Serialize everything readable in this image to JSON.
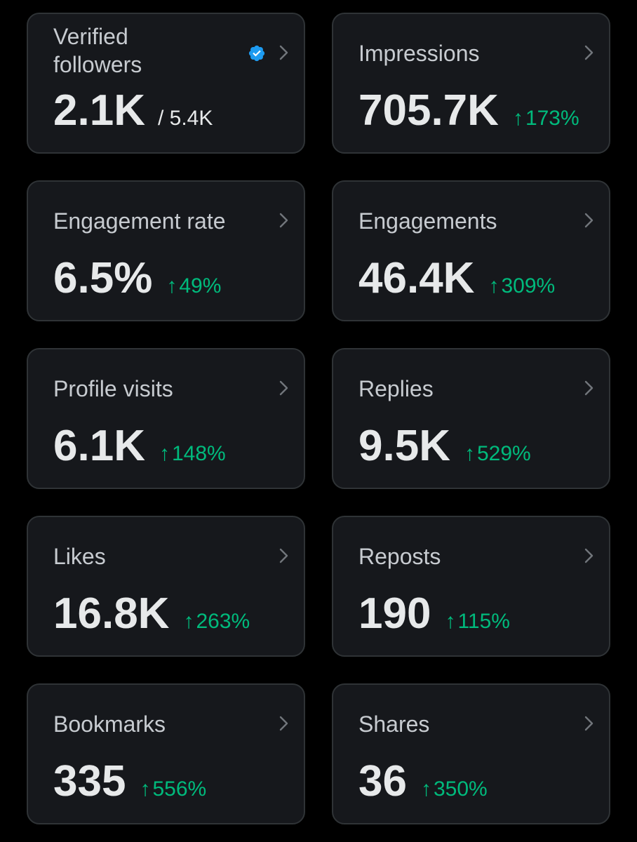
{
  "colors": {
    "background": "#000000",
    "card_bg": "#16181c",
    "card_border": "#2f3336",
    "title": "#c7cbd0",
    "value": "#e7e9ea",
    "positive": "#00ba7c",
    "verified": "#1d9bf0"
  },
  "icons": {
    "chevron": "chevron-right-icon",
    "verified": "verified-badge-icon",
    "arrow": "arrow-up-icon"
  },
  "cards": [
    {
      "title": "Verified followers",
      "value": "2.1K",
      "total": "/ 5.4K"
    },
    {
      "title": "Impressions",
      "value": "705.7K",
      "arrow": "↑",
      "change": "173%"
    },
    {
      "title": "Engagement rate",
      "value": "6.5%",
      "arrow": "↑",
      "change": "49%"
    },
    {
      "title": "Engagements",
      "value": "46.4K",
      "arrow": "↑",
      "change": "309%"
    },
    {
      "title": "Profile visits",
      "value": "6.1K",
      "arrow": "↑",
      "change": "148%"
    },
    {
      "title": "Replies",
      "value": "9.5K",
      "arrow": "↑",
      "change": "529%"
    },
    {
      "title": "Likes",
      "value": "16.8K",
      "arrow": "↑",
      "change": "263%"
    },
    {
      "title": "Reposts",
      "value": "190",
      "arrow": "↑",
      "change": "115%"
    },
    {
      "title": "Bookmarks",
      "value": "335",
      "arrow": "↑",
      "change": "556%"
    },
    {
      "title": "Shares",
      "value": "36",
      "arrow": "↑",
      "change": "350%"
    }
  ]
}
